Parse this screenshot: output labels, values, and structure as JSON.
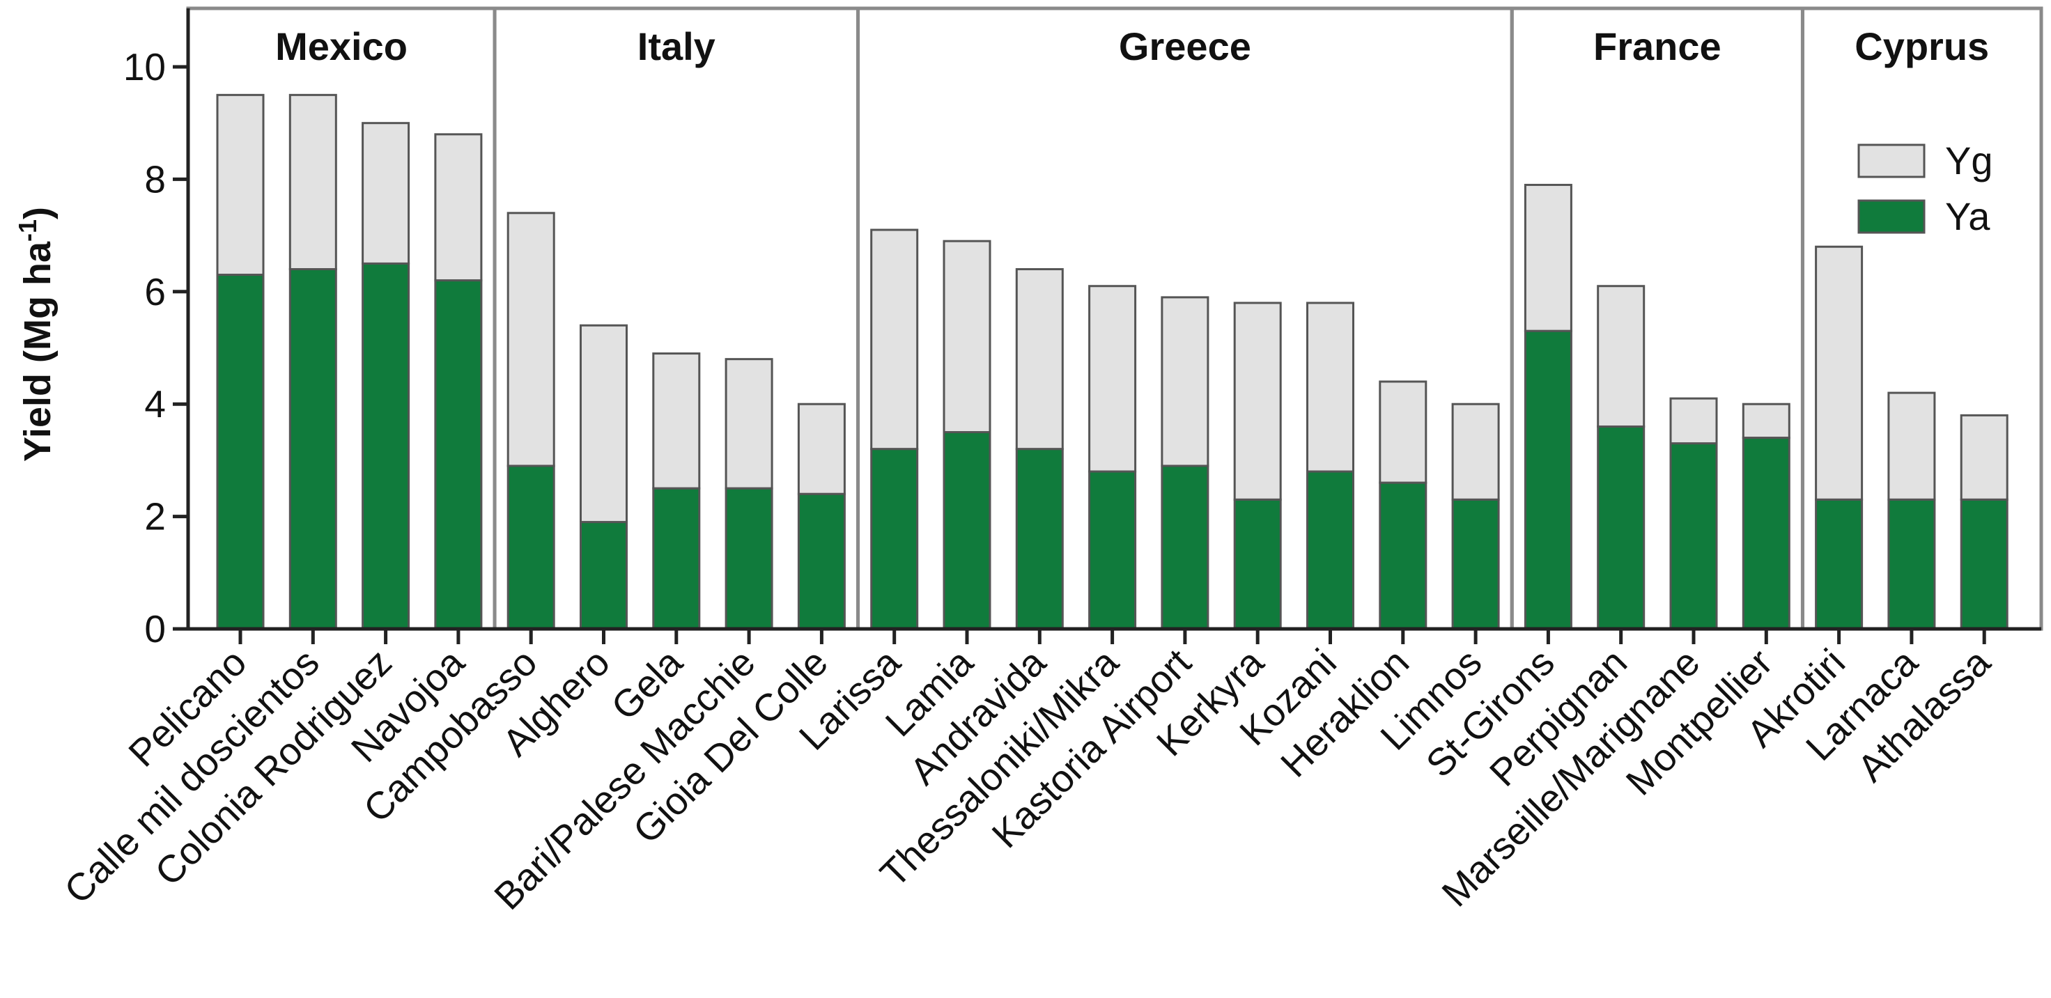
{
  "chart_data": {
    "type": "bar",
    "stacked": true,
    "ylabel_main": "Yield (Mg ha",
    "ylabel_sup": "-1",
    "ylabel_close": ")",
    "ylim": [
      0,
      11
    ],
    "yticks": [
      "0",
      "2",
      "4",
      "6",
      "8",
      "10"
    ],
    "ytick_values": [
      0,
      2,
      4,
      6,
      8,
      10
    ],
    "colors": {
      "Ya": "#107b3c",
      "Yg": "#e2e2e2",
      "bar_stroke": "#555555",
      "panel_stroke": "#8a8a8a"
    },
    "legend": {
      "position": "top-right",
      "items": [
        "Yg",
        "Ya"
      ]
    },
    "groups": [
      {
        "name": "Mexico",
        "start": 0,
        "end": 3
      },
      {
        "name": "Italy",
        "start": 4,
        "end": 8
      },
      {
        "name": "Greece",
        "start": 9,
        "end": 17
      },
      {
        "name": "France",
        "start": 18,
        "end": 21
      },
      {
        "name": "Cyprus",
        "start": 22,
        "end": 24
      }
    ],
    "categories": [
      "Pelicano",
      "Calle mil doscientos",
      "Colonia Rodriguez",
      "Navojoa",
      "Campobasso",
      "Alghero",
      "Gela",
      "Bari/Palese Macchie",
      "Gioia Del Colle",
      "Larissa",
      "Lamia",
      "Andravida",
      "Thessaloniki/Mikra",
      "Kastoria Airport",
      "Kerkyra",
      "Kozani",
      "Heraklion",
      "Limnos",
      "St-Girons",
      "Perpignan",
      "Marseille/Marignane",
      "Montpellier",
      "Akrotiri",
      "Larnaca",
      "Athalassa"
    ],
    "series": [
      {
        "name": "Ya",
        "values": [
          6.3,
          6.4,
          6.5,
          6.2,
          2.9,
          1.9,
          2.5,
          2.5,
          2.4,
          3.2,
          3.5,
          3.2,
          2.8,
          2.9,
          2.3,
          2.8,
          2.6,
          2.3,
          5.3,
          3.6,
          3.3,
          3.4,
          2.3,
          2.3,
          2.3
        ]
      },
      {
        "name": "Yg",
        "values": [
          3.2,
          3.1,
          2.5,
          2.6,
          4.5,
          3.5,
          2.4,
          2.3,
          1.6,
          3.9,
          3.4,
          3.2,
          3.3,
          3.0,
          3.5,
          3.0,
          1.8,
          1.7,
          2.6,
          2.5,
          0.8,
          0.6,
          4.5,
          1.9,
          1.5
        ]
      }
    ]
  }
}
